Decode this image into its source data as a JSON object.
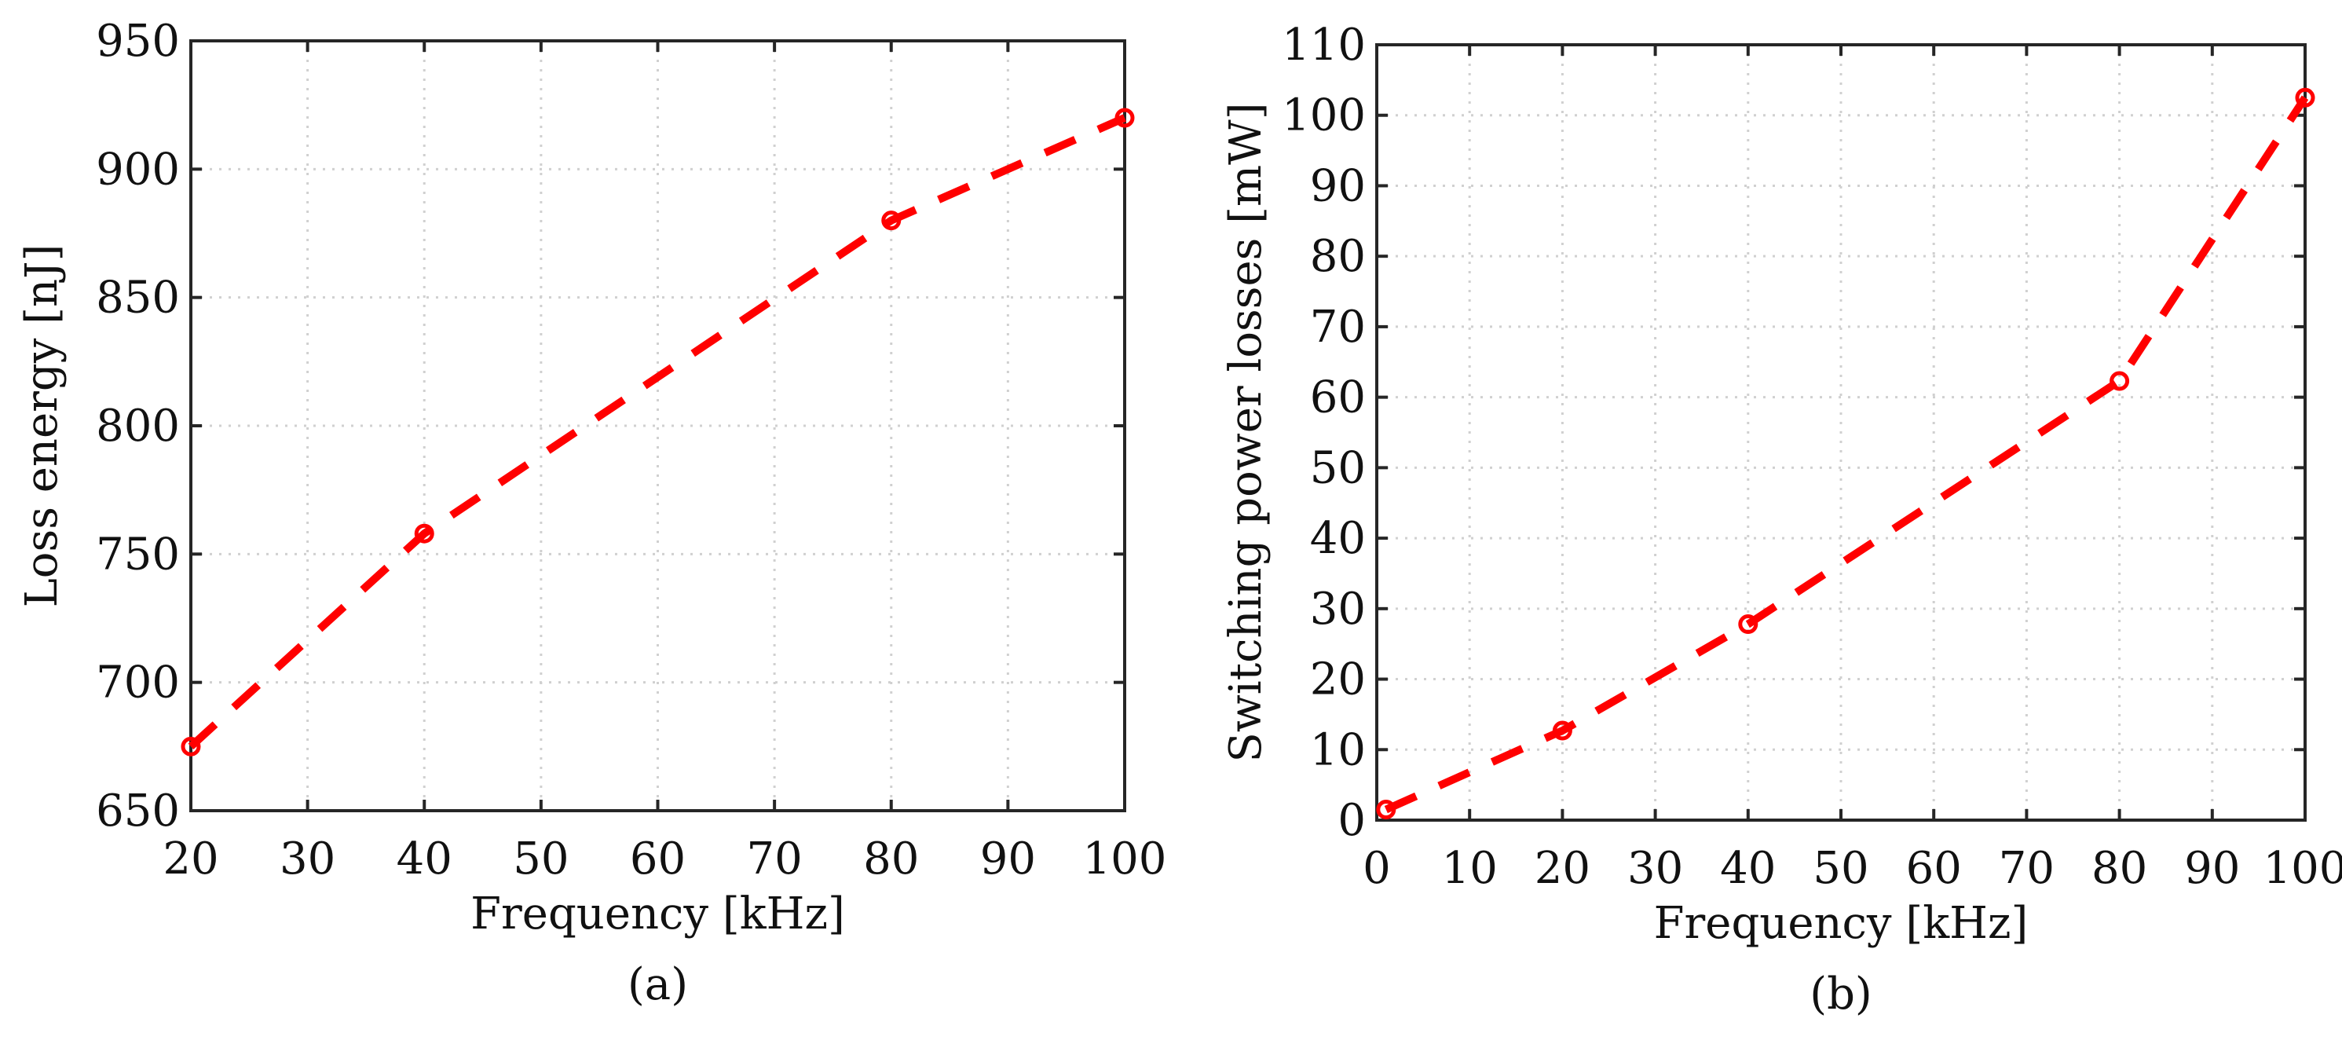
{
  "chart_data": [
    {
      "type": "line",
      "caption": "(a)",
      "xlabel": "Frequency [kHz]",
      "ylabel": "Loss energy [nJ]",
      "xlim": [
        20,
        100
      ],
      "ylim": [
        650,
        950
      ],
      "xticks": [
        20,
        30,
        40,
        50,
        60,
        70,
        80,
        90,
        100
      ],
      "yticks": [
        650,
        700,
        750,
        800,
        850,
        900,
        950
      ],
      "grid": true,
      "line_style": "dashed",
      "marker": "circle",
      "color": "#ff0000",
      "x": [
        20,
        40,
        80,
        100
      ],
      "y": [
        675,
        758,
        880,
        920
      ]
    },
    {
      "type": "line",
      "caption": "(b)",
      "xlabel": "Frequency [kHz]",
      "ylabel": "Switching power losses [mW]",
      "xlim": [
        0,
        100
      ],
      "ylim": [
        0,
        110
      ],
      "xticks": [
        0,
        10,
        20,
        30,
        40,
        50,
        60,
        70,
        80,
        90,
        100
      ],
      "yticks": [
        0,
        10,
        20,
        30,
        40,
        50,
        60,
        70,
        80,
        90,
        100,
        110
      ],
      "grid": true,
      "line_style": "dashed",
      "marker": "circle",
      "color": "#ff0000",
      "x": [
        1,
        20,
        40,
        80,
        100
      ],
      "y": [
        1.5,
        12.7,
        27.8,
        62.3,
        102.5
      ]
    }
  ]
}
